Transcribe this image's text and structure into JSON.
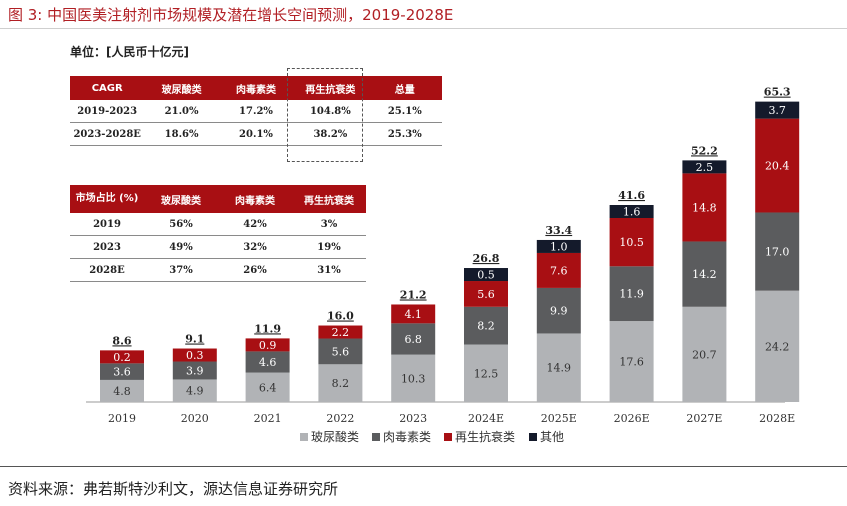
{
  "figure_title": "图 3: 中国医美注射剂市场规模及潜在增长空间预测，2019-2028E",
  "unit_label": "单位：[人民币十亿元]",
  "source": "资料来源：弗若斯特沙利文，源达信息证券研究所",
  "cagr_table": {
    "headers": [
      "CAGR",
      "玻尿酸类",
      "肉毒素类",
      "再生抗衰类",
      "总量"
    ],
    "rows": [
      [
        "2019-2023",
        "21.0%",
        "17.2%",
        "104.8%",
        "25.1%"
      ],
      [
        "2023-2028E",
        "18.6%",
        "20.1%",
        "38.2%",
        "25.3%"
      ]
    ]
  },
  "share_table": {
    "headers": [
      "市场占比 (%)",
      "玻尿酸类",
      "肉毒素类",
      "再生抗衰类"
    ],
    "rows": [
      [
        "2019",
        "56%",
        "42%",
        "3%"
      ],
      [
        "2023",
        "49%",
        "32%",
        "19%"
      ],
      [
        "2028E",
        "37%",
        "26%",
        "31%"
      ]
    ]
  },
  "chart_data": {
    "type": "bar",
    "stacked": true,
    "categories": [
      "2019",
      "2020",
      "2021",
      "2022",
      "2023",
      "2024E",
      "2025E",
      "2026E",
      "2027E",
      "2028E"
    ],
    "series": [
      {
        "name": "玻尿酸类",
        "color": "#b1b3b6",
        "values": [
          4.8,
          4.9,
          6.4,
          8.2,
          10.3,
          12.5,
          14.9,
          17.6,
          20.7,
          24.2
        ]
      },
      {
        "name": "肉毒素类",
        "color": "#5b5c5e",
        "values": [
          3.6,
          3.9,
          4.6,
          5.6,
          6.8,
          8.2,
          9.9,
          11.9,
          14.2,
          17.0
        ]
      },
      {
        "name": "再生抗衰类",
        "color": "#a80f13",
        "values": [
          0.2,
          0.3,
          0.9,
          2.2,
          4.1,
          5.6,
          7.6,
          10.5,
          14.8,
          20.4
        ]
      },
      {
        "name": "其他",
        "color": "#141a2b",
        "values": [
          null,
          null,
          null,
          null,
          null,
          0.5,
          1.0,
          1.6,
          2.5,
          3.7
        ]
      }
    ],
    "totals": [
      "8.6",
      "9.1",
      "11.9",
      "16.0",
      "21.2",
      "26.8",
      "33.4",
      "41.6",
      "52.2",
      "65.3"
    ],
    "grid": false,
    "legend_position": "bottom"
  }
}
